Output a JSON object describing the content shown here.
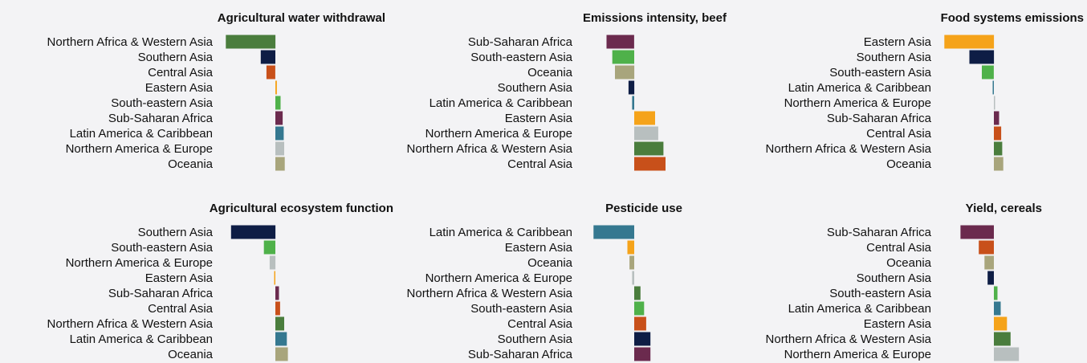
{
  "colors": {
    "Northern Africa & Western Asia": "#4a7d3d",
    "Southern Asia": "#0e1d45",
    "Central Asia": "#c8501a",
    "Eastern Asia": "#f5a31a",
    "South-eastern Asia": "#4fb14a",
    "Sub-Saharan Africa": "#6b2a4e",
    "Latin America & Caribbean": "#357890",
    "Northern America & Europe": "#b8bfbf",
    "Oceania": "#a8a57c"
  },
  "chart_data": [
    {
      "type": "bar",
      "orientation": "horizontal",
      "title": "Agricultural water withdrawal",
      "categories": [
        "Northern Africa & Western Asia",
        "Southern Asia",
        "Central Asia",
        "Eastern Asia",
        "South-eastern Asia",
        "Sub-Saharan Africa",
        "Latin America & Caribbean",
        "Northern America & Europe",
        "Oceania"
      ],
      "values": [
        -9.5,
        -2.8,
        -1.7,
        0.3,
        1.0,
        1.4,
        1.6,
        1.7,
        1.8
      ]
    },
    {
      "type": "bar",
      "orientation": "horizontal",
      "title": "Emissions intensity, beef",
      "categories": [
        "Sub-Saharan Africa",
        "South-eastern Asia",
        "Oceania",
        "Southern Asia",
        "Latin America & Caribbean",
        "Eastern Asia",
        "Northern America & Europe",
        "Northern Africa & Western Asia",
        "Central Asia"
      ],
      "values": [
        -5.3,
        -4.2,
        -3.7,
        -1.1,
        -0.4,
        4.0,
        4.6,
        5.6,
        6.0
      ]
    },
    {
      "type": "bar",
      "orientation": "horizontal",
      "title": "Food systems emissions",
      "categories": [
        "Eastern Asia",
        "Southern Asia",
        "South-eastern Asia",
        "Latin America & Caribbean",
        "Northern America & Europe",
        "Sub-Saharan Africa",
        "Central Asia",
        "Northern Africa & Western Asia",
        "Oceania"
      ],
      "values": [
        -9.5,
        -4.7,
        -2.3,
        -0.2,
        0.1,
        1.0,
        1.4,
        1.6,
        1.8
      ]
    },
    {
      "type": "bar",
      "orientation": "horizontal",
      "title": "Agricultural ecosystem function",
      "categories": [
        "Southern Asia",
        "South-eastern Asia",
        "Northern America & Europe",
        "Eastern Asia",
        "Sub-Saharan Africa",
        "Central Asia",
        "Northern Africa & Western Asia",
        "Latin America & Caribbean",
        "Oceania"
      ],
      "values": [
        -8.5,
        -2.2,
        -1.1,
        -0.2,
        0.7,
        0.9,
        1.7,
        2.2,
        2.4
      ]
    },
    {
      "type": "bar",
      "orientation": "horizontal",
      "title": "Pesticide use",
      "categories": [
        "Latin America & Caribbean",
        "Eastern Asia",
        "Oceania",
        "Northern America & Europe",
        "Northern Africa & Western Asia",
        "South-eastern Asia",
        "Central Asia",
        "Southern Asia",
        "Sub-Saharan Africa"
      ],
      "values": [
        -7.8,
        -1.3,
        -0.9,
        -0.4,
        1.2,
        1.9,
        2.3,
        3.1,
        3.1
      ]
    },
    {
      "type": "bar",
      "orientation": "horizontal",
      "title": "Yield, cereals",
      "categories": [
        "Sub-Saharan Africa",
        "Central Asia",
        "Oceania",
        "Southern Asia",
        "South-eastern Asia",
        "Latin America & Caribbean",
        "Eastern Asia",
        "Northern Africa & Western Asia",
        "Northern America & Europe"
      ],
      "values": [
        -6.4,
        -2.9,
        -1.8,
        -1.2,
        0.7,
        1.3,
        2.5,
        3.2,
        4.8
      ]
    }
  ]
}
